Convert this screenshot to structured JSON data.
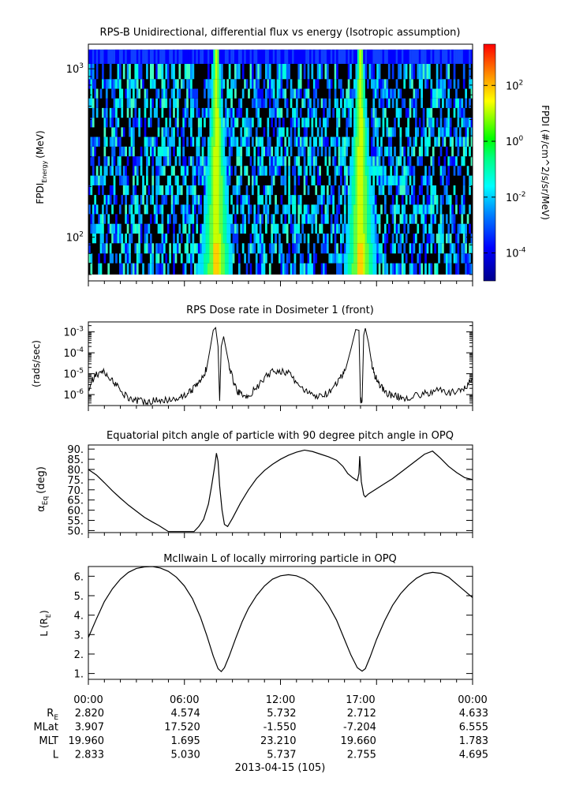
{
  "chart_data": [
    {
      "type": "heatmap",
      "title": "RPS-B  Unidirectional, differential flux vs energy (Isotropic assumption)",
      "ylabel_main": "FPDI",
      "ylabel_sub": "Energy",
      "ylabel_unit": "(MeV)",
      "y_scale": "log",
      "ylim": [
        55,
        1400
      ],
      "y_ticks": [
        {
          "value": 100,
          "label": "10",
          "sup": "2"
        },
        {
          "value": 1000,
          "label": "10",
          "sup": "3"
        }
      ],
      "energy_channel_edges_mev": [
        60,
        70,
        80,
        92,
        105,
        120,
        137,
        156,
        178,
        203,
        232,
        265,
        302,
        345,
        394,
        449,
        512,
        585,
        667,
        761,
        868,
        1070,
        1300
      ],
      "x_range_hours": [
        0,
        24
      ],
      "enhancement_hours": [
        8.0,
        17.0
      ],
      "colorbar": {
        "label": "FPDI (#/cm^2/s/sr/MeV)",
        "scale": "log",
        "range": [
          1e-05,
          3000
        ],
        "ticks": [
          {
            "value": 0.0001,
            "label": "10",
            "sup": "-4"
          },
          {
            "value": 0.01,
            "label": "10",
            "sup": "-2"
          },
          {
            "value": 1,
            "label": "10",
            "sup": "0"
          },
          {
            "value": 100,
            "label": "10",
            "sup": "2"
          }
        ]
      }
    },
    {
      "type": "line",
      "title": "RPS  Dose rate in Dosimeter 1 (front)",
      "ylabel": "(rads/sec)",
      "y_scale": "log",
      "ylim": [
        3e-07,
        0.003
      ],
      "y_ticks": [
        {
          "value": 1e-06,
          "label": "10",
          "sup": "-6"
        },
        {
          "value": 1e-05,
          "label": "10",
          "sup": "-5"
        },
        {
          "value": 0.0001,
          "label": "10",
          "sup": "-4"
        },
        {
          "value": 0.001,
          "label": "10",
          "sup": "-3"
        }
      ],
      "series": [
        {
          "x": [
            0,
            0.4,
            0.8,
            1.2,
            1.6,
            2.0,
            2.4,
            2.8,
            3.2,
            3.6,
            4.0,
            4.5,
            5.0,
            5.5,
            6.0,
            6.4,
            6.8,
            7.1,
            7.4,
            7.6,
            7.8,
            7.95,
            8.1,
            8.2,
            8.3,
            8.45,
            8.6,
            8.8,
            9.0,
            9.3,
            9.6,
            10.0,
            10.5,
            11.0,
            11.5,
            12.0,
            12.5,
            13.0,
            13.5,
            14.0,
            14.5,
            15.0,
            15.5,
            15.8,
            16.1,
            16.4,
            16.7,
            16.9,
            17.0,
            17.1,
            17.2,
            17.3,
            17.5,
            17.7,
            17.9,
            18.2,
            18.5,
            18.9,
            19.3,
            19.7,
            20.2,
            20.8,
            21.4,
            22.0,
            22.6,
            23.2,
            23.6,
            24.0
          ],
          "values": [
            2e-06,
            8e-06,
            1.3e-05,
            9e-06,
            4e-06,
            1.5e-06,
            8e-07,
            6e-07,
            5e-07,
            5e-07,
            5e-07,
            5e-07,
            6e-07,
            7e-07,
            9e-07,
            1.5e-06,
            3e-06,
            6e-06,
            2e-05,
            0.00015,
            0.0012,
            0.0016,
            0.0002,
            5e-07,
            0.0002,
            0.0006,
            0.00015,
            2.5e-05,
            6e-06,
            1.5e-06,
            1e-06,
            9e-07,
            2e-06,
            6e-06,
            1.3e-05,
            1.4e-05,
            1e-05,
            4e-06,
            1.5e-06,
            9e-07,
            8e-07,
            1.2e-06,
            3e-06,
            7e-06,
            2e-05,
            0.00015,
            0.0013,
            0.0012,
            5e-07,
            5e-07,
            0.0007,
            0.0015,
            0.0003,
            3e-05,
            8e-06,
            3e-06,
            1.5e-06,
            9e-07,
            8e-07,
            7e-07,
            8e-07,
            1e-06,
            1.3e-06,
            1.6e-06,
            1.2e-06,
            1.5e-06,
            2.5e-06,
            6e-06
          ]
        }
      ]
    },
    {
      "type": "line",
      "title": "Equatorial pitch angle of particle with 90 degree pitch angle in OPQ",
      "ylabel_main": "α",
      "ylabel_sub": "Eq",
      "ylabel_unit": "(deg)",
      "ylim": [
        49,
        92
      ],
      "y_ticks": [
        50.0,
        55.0,
        60.0,
        65.0,
        70.0,
        75.0,
        80.0,
        85.0,
        90.0
      ],
      "y_tick_labels": [
        "50.",
        "55.",
        "60.",
        "65.",
        "70.",
        "75.",
        "80.",
        "85.",
        "90."
      ],
      "series": [
        {
          "x": [
            0,
            0.5,
            1.0,
            1.5,
            2.0,
            2.5,
            3.0,
            3.5,
            4.0,
            4.4,
            4.7,
            5.0,
            6.6,
            6.9,
            7.2,
            7.5,
            7.7,
            7.9,
            8.0,
            8.1,
            8.2,
            8.35,
            8.5,
            8.7,
            9.0,
            9.5,
            10.0,
            10.5,
            11.0,
            11.5,
            12.0,
            12.5,
            13.0,
            13.5,
            14.0,
            14.5,
            15.0,
            15.5,
            15.9,
            16.2,
            16.5,
            16.8,
            16.9,
            16.95,
            17.05,
            17.2,
            17.3,
            17.5,
            18.0,
            18.5,
            19.0,
            19.5,
            20.0,
            20.5,
            21.0,
            21.5,
            22.0,
            22.5,
            23.0,
            23.5,
            24.0
          ],
          "values": [
            80,
            77.3,
            73.5,
            69.5,
            65.9,
            62.5,
            59.5,
            56.5,
            54.2,
            52.5,
            51,
            49.5,
            49.5,
            52,
            55.5,
            63,
            72,
            82,
            88,
            84,
            72,
            60,
            53,
            52,
            56,
            63.5,
            70,
            75.5,
            79.5,
            82.5,
            85,
            87,
            88.5,
            89.5,
            88.8,
            87.5,
            86.2,
            84.5,
            81.5,
            78,
            76,
            74.5,
            78,
            86.5,
            74,
            67.5,
            66.5,
            68,
            70.5,
            73,
            75.5,
            78.5,
            81.5,
            84.5,
            87.5,
            89,
            85.5,
            81.5,
            78.5,
            76,
            75
          ]
        }
      ]
    },
    {
      "type": "line",
      "title": "McIlwain L of locally mirroring particle in OPQ",
      "ylabel_main": "L (R",
      "ylabel_sub": "E",
      "ylabel_tail": ")",
      "ylim": [
        0.7,
        6.5
      ],
      "y_ticks": [
        1.0,
        2.0,
        3.0,
        4.0,
        5.0,
        6.0
      ],
      "y_tick_labels": [
        "1.",
        "2.",
        "3.",
        "4.",
        "5.",
        "6."
      ],
      "series": [
        {
          "x": [
            0,
            0.5,
            1.0,
            1.5,
            2.0,
            2.5,
            3.0,
            3.5,
            4.0,
            4.5,
            5.0,
            5.5,
            6.0,
            6.5,
            7.0,
            7.4,
            7.8,
            8.1,
            8.3,
            8.5,
            8.8,
            9.2,
            9.6,
            10.0,
            10.5,
            11.0,
            11.5,
            12.0,
            12.5,
            13.0,
            13.5,
            14.0,
            14.5,
            15.0,
            15.5,
            16.0,
            16.4,
            16.8,
            17.1,
            17.3,
            17.6,
            18.0,
            18.5,
            19.0,
            19.5,
            20.0,
            20.5,
            21.0,
            21.5,
            22.0,
            22.5,
            23.0,
            23.5,
            24.0
          ],
          "values": [
            2.85,
            3.8,
            4.7,
            5.35,
            5.85,
            6.2,
            6.4,
            6.48,
            6.5,
            6.42,
            6.25,
            5.95,
            5.5,
            4.85,
            3.9,
            2.95,
            1.9,
            1.25,
            1.1,
            1.3,
            1.9,
            2.8,
            3.65,
            4.35,
            5.0,
            5.5,
            5.85,
            6.02,
            6.08,
            6.02,
            5.85,
            5.55,
            5.1,
            4.5,
            3.75,
            2.75,
            1.95,
            1.3,
            1.12,
            1.25,
            1.85,
            2.75,
            3.7,
            4.5,
            5.1,
            5.55,
            5.9,
            6.12,
            6.2,
            6.15,
            5.95,
            5.6,
            5.25,
            4.9
          ]
        }
      ]
    }
  ],
  "ephemeris": {
    "time_labels": [
      "00:00",
      "06:00",
      "12:00",
      "17:00",
      "00:00"
    ],
    "rows": [
      {
        "label": "R",
        "sub": "E",
        "values": [
          "2.820",
          "4.574",
          "5.732",
          "2.712",
          "4.633"
        ]
      },
      {
        "label": "MLat",
        "sub": "",
        "values": [
          "3.907",
          "17.520",
          "-1.550",
          "-7.204",
          "6.555"
        ]
      },
      {
        "label": "MLT",
        "sub": "",
        "values": [
          "19.960",
          "1.695",
          "23.210",
          "19.660",
          "1.783"
        ]
      },
      {
        "label": "L",
        "sub": "",
        "values": [
          "2.833",
          "5.030",
          "5.737",
          "2.755",
          "4.695"
        ]
      }
    ],
    "date_label": "2013-04-15 (105)"
  },
  "colors": {
    "line": "#000000",
    "background": "#ffffff",
    "spectrogram_low": "#000000"
  }
}
